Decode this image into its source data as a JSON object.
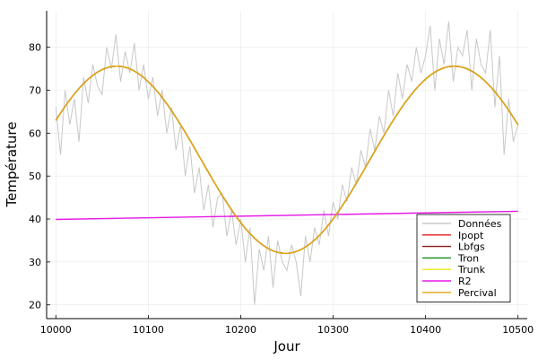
{
  "chart_data": {
    "type": "line",
    "xlabel": "Jour",
    "ylabel": "Température",
    "xlim": [
      9990,
      10510
    ],
    "ylim": [
      16.8,
      88.5
    ],
    "xticks": [
      10000,
      10100,
      10200,
      10300,
      10400,
      10500
    ],
    "yticks": [
      20,
      30,
      40,
      50,
      60,
      70,
      80
    ],
    "grid": true,
    "legend_position": "bottom-right",
    "data_series": {
      "name": "Données",
      "color": "#c8c8c8",
      "x": [
        10000,
        10005,
        10010,
        10015,
        10020,
        10025,
        10030,
        10035,
        10040,
        10045,
        10050,
        10055,
        10060,
        10065,
        10070,
        10075,
        10080,
        10085,
        10090,
        10095,
        10100,
        10105,
        10110,
        10115,
        10120,
        10125,
        10130,
        10135,
        10140,
        10145,
        10150,
        10155,
        10160,
        10165,
        10170,
        10175,
        10180,
        10185,
        10190,
        10195,
        10200,
        10205,
        10210,
        10215,
        10220,
        10225,
        10230,
        10235,
        10240,
        10245,
        10250,
        10255,
        10260,
        10265,
        10270,
        10275,
        10280,
        10285,
        10290,
        10295,
        10300,
        10305,
        10310,
        10315,
        10320,
        10325,
        10330,
        10335,
        10340,
        10345,
        10350,
        10355,
        10360,
        10365,
        10370,
        10375,
        10380,
        10385,
        10390,
        10395,
        10400,
        10405,
        10410,
        10415,
        10420,
        10425,
        10430,
        10435,
        10440,
        10445,
        10450,
        10455,
        10460,
        10465,
        10470,
        10475,
        10480,
        10485,
        10490,
        10495,
        10500
      ],
      "values": [
        66,
        55,
        70,
        62,
        68,
        58,
        73,
        67,
        76,
        71,
        69,
        80,
        75,
        83,
        72,
        79,
        74,
        81,
        70,
        76,
        68,
        73,
        64,
        70,
        60,
        66,
        56,
        62,
        50,
        57,
        46,
        52,
        42,
        48,
        38,
        45,
        46,
        36,
        42,
        34,
        40,
        30,
        38,
        20,
        33,
        28,
        36,
        24,
        35,
        30,
        28,
        34,
        30,
        22,
        36,
        30,
        38,
        34,
        42,
        36,
        44,
        40,
        48,
        44,
        52,
        48,
        56,
        52,
        61,
        56,
        64,
        60,
        70,
        64,
        74,
        68,
        76,
        72,
        80,
        74,
        78,
        85,
        70,
        82,
        76,
        86,
        72,
        80,
        78,
        84,
        70,
        82,
        76,
        74,
        84,
        66,
        78,
        55,
        68,
        58,
        62
      ]
    },
    "series": [
      {
        "name": "Ipopt",
        "color": "#e6191c"
      },
      {
        "name": "Lbfgs",
        "color": "#8b1a1a"
      },
      {
        "name": "Tron",
        "color": "#138a13"
      },
      {
        "name": "Trunk",
        "color": "#f2e61a"
      },
      {
        "name": "R2",
        "color": "#e619e6",
        "x": [
          10000,
          10500
        ],
        "values": [
          39.9,
          41.8
        ]
      },
      {
        "name": "Percival",
        "color": "#e3a21a"
      }
    ],
    "fit_model": {
      "mean": 53.8,
      "amplitude": 21.8,
      "period_days": 365,
      "peak_day": 10066
    }
  }
}
